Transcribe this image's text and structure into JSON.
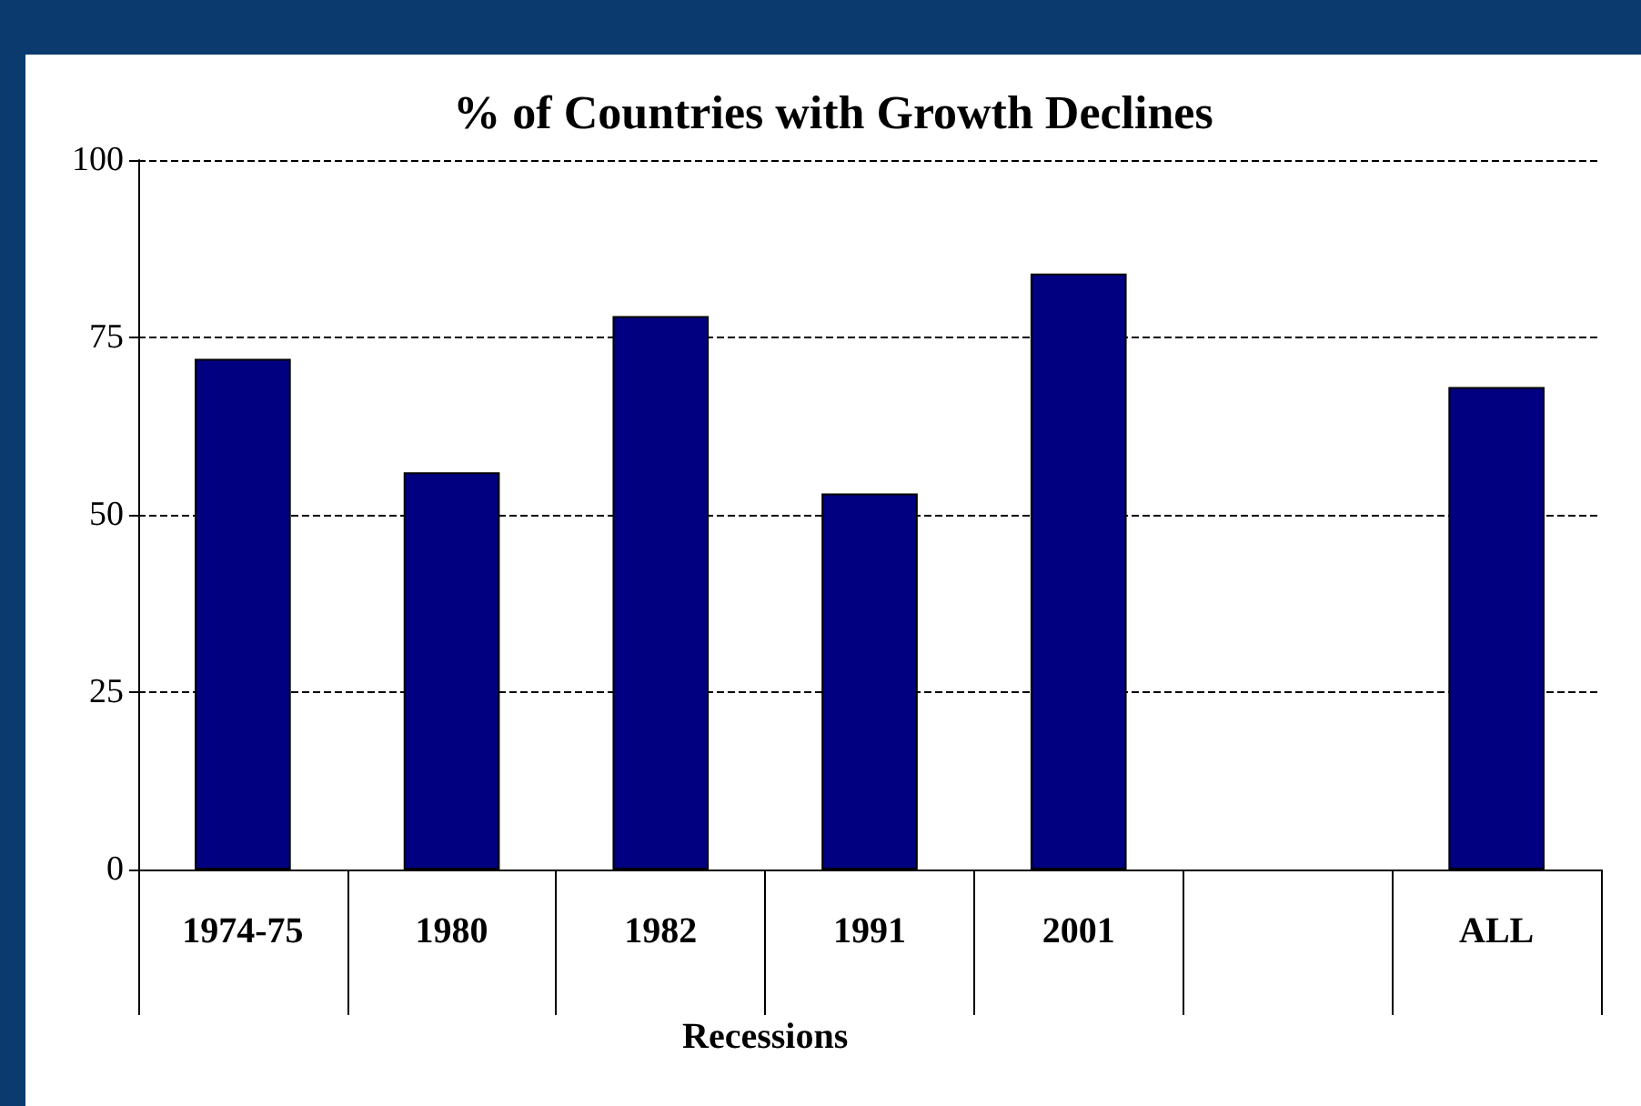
{
  "chart_data": {
    "type": "bar",
    "title": "% of Countries with Growth Declines",
    "categories": [
      "1974-75",
      "1980",
      "1982",
      "1991",
      "2001",
      null,
      "ALL"
    ],
    "values": [
      72,
      56,
      78,
      53,
      84,
      null,
      68
    ],
    "color": "#000080",
    "ylim": [
      0,
      100
    ],
    "yticks": [
      0,
      25,
      50,
      75,
      100
    ],
    "grid": "y",
    "annotations": [
      "Recessions"
    ]
  }
}
